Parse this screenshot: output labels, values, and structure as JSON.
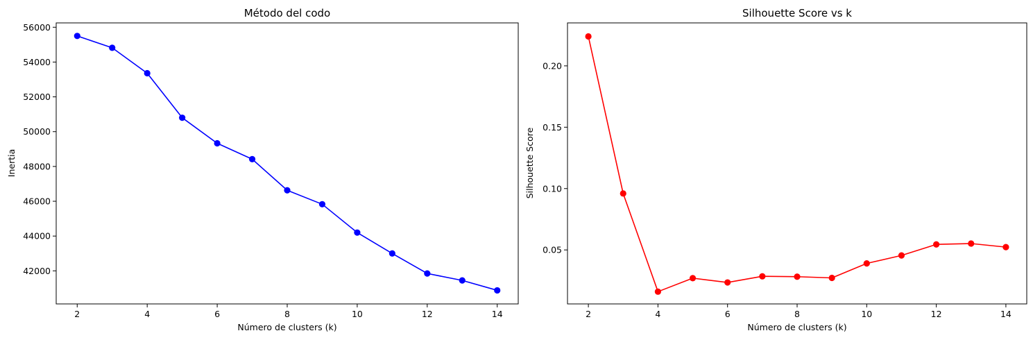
{
  "chart_data": [
    {
      "type": "line",
      "title": "Método del codo",
      "xlabel": "Número de clusters (k)",
      "ylabel": "Inertia",
      "x": [
        2,
        3,
        4,
        5,
        6,
        7,
        8,
        9,
        10,
        11,
        12,
        13,
        14
      ],
      "series": [
        {
          "values": [
            55500,
            54820,
            53360,
            50800,
            49330,
            48420,
            46630,
            45830,
            44200,
            43000,
            41850,
            41450,
            40880
          ]
        }
      ],
      "xlim": [
        1.4,
        14.6
      ],
      "ylim": [
        40100,
        56250
      ],
      "xticks": [
        2,
        4,
        6,
        8,
        10,
        12,
        14
      ],
      "yticks": [
        42000,
        44000,
        46000,
        48000,
        50000,
        52000,
        54000,
        56000
      ],
      "ytick_decimals": 0,
      "color": "#0000ff",
      "marker": "circle",
      "grid": false,
      "legend": "none"
    },
    {
      "type": "line",
      "title": "Silhouette Score vs k",
      "xlabel": "Número de clusters (k)",
      "ylabel": "Silhouette Score",
      "x": [
        2,
        3,
        4,
        5,
        6,
        7,
        8,
        9,
        10,
        11,
        12,
        13,
        14
      ],
      "series": [
        {
          "values": [
            0.224,
            0.096,
            0.016,
            0.027,
            0.0235,
            0.0285,
            0.0282,
            0.0272,
            0.039,
            0.0455,
            0.0545,
            0.0552,
            0.0523
          ]
        }
      ],
      "xlim": [
        1.4,
        14.6
      ],
      "ylim": [
        0.006,
        0.235
      ],
      "xticks": [
        2,
        4,
        6,
        8,
        10,
        12,
        14
      ],
      "yticks": [
        0.05,
        0.1,
        0.15,
        0.2
      ],
      "ytick_decimals": 2,
      "color": "#ff0000",
      "marker": "circle",
      "grid": false,
      "legend": "none"
    }
  ]
}
